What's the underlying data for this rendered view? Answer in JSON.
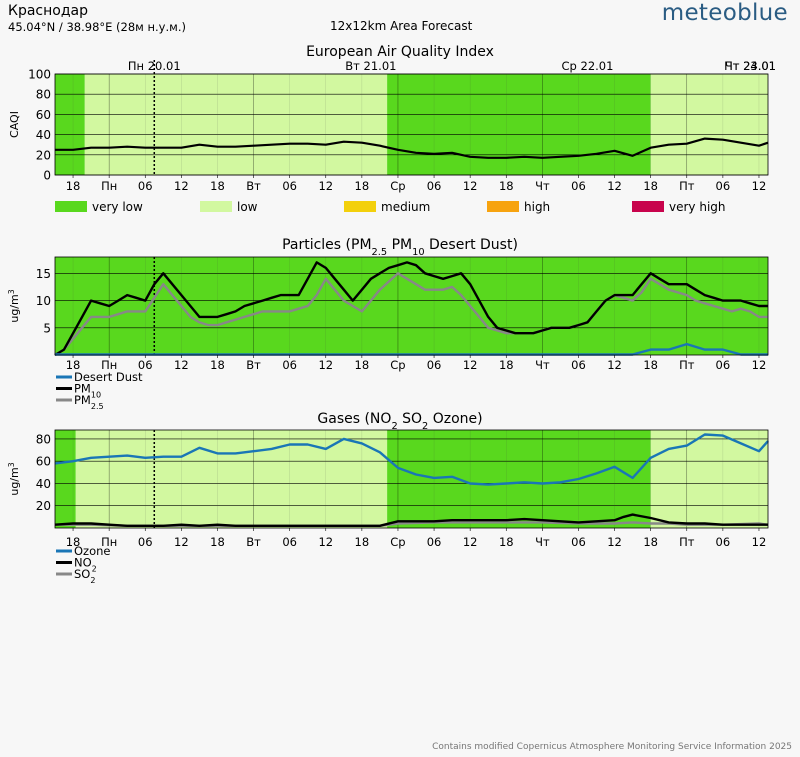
{
  "header": {
    "location": "Краснодар",
    "coords": "45.04°N / 38.98°E (28м н.у.м.)",
    "model": "12x12km Area Forecast",
    "brand": "meteoblue"
  },
  "footer": {
    "attribution": "Contains modified Copernicus Atmosphere Monitoring Service Information 2025"
  },
  "timeline": {
    "x_range": [
      0,
      79
    ],
    "day_labels": [
      {
        "x": 11,
        "label": "Пн 20.01"
      },
      {
        "x": 35,
        "label": "Вт 21.01"
      },
      {
        "x": 59,
        "label": "Ср 22.01"
      },
      {
        "x": 83,
        "label": "Чт 23.01"
      },
      {
        "x": 107,
        "label": "Пт 24.01"
      }
    ],
    "tick_labels": [
      {
        "x": 2,
        "label": "18"
      },
      {
        "x": 6,
        "label": "Пн"
      },
      {
        "x": 10,
        "label": "06"
      },
      {
        "x": 14,
        "label": "12"
      },
      {
        "x": 18,
        "label": "18"
      },
      {
        "x": 22,
        "label": "Вт"
      },
      {
        "x": 26,
        "label": "06"
      },
      {
        "x": 30,
        "label": "12"
      },
      {
        "x": 34,
        "label": "18"
      },
      {
        "x": 38,
        "label": "Ср"
      },
      {
        "x": 42,
        "label": "06"
      },
      {
        "x": 46,
        "label": "12"
      },
      {
        "x": 50,
        "label": "18"
      },
      {
        "x": 54,
        "label": "Чт"
      },
      {
        "x": 58,
        "label": "06"
      },
      {
        "x": 62,
        "label": "12"
      },
      {
        "x": 66,
        "label": "18"
      },
      {
        "x": 70,
        "label": "Пт"
      },
      {
        "x": 74,
        "label": "06"
      },
      {
        "x": 78,
        "label": "12"
      }
    ],
    "day_lines": [
      6,
      22,
      38,
      54,
      70
    ],
    "now_marker": 11,
    "band_colors": {
      "very_low": "#59d81e",
      "low": "#d2f8a0"
    }
  },
  "chart_data": [
    {
      "type": "line",
      "title": "European Air Quality Index",
      "ylabel": "CAQI",
      "ylim": [
        0,
        100
      ],
      "yticks": [
        0,
        20,
        40,
        60,
        80,
        100
      ],
      "bands": [
        {
          "from": 0,
          "to": 3.3,
          "level": "very_low"
        },
        {
          "from": 3.3,
          "to": 36.8,
          "level": "low"
        },
        {
          "from": 36.8,
          "to": 66,
          "level": "very_low"
        },
        {
          "from": 66,
          "to": 79,
          "level": "low"
        }
      ],
      "legend": [
        {
          "label": "very low",
          "color": "#59d81e"
        },
        {
          "label": "low",
          "color": "#d2f8a0"
        },
        {
          "label": "medium",
          "color": "#f3d00c"
        },
        {
          "label": "high",
          "color": "#f7a30f"
        },
        {
          "label": "very high",
          "color": "#c8034c"
        }
      ],
      "series": [
        {
          "name": "CAQI",
          "color": "#000000",
          "width": 2.2,
          "x": [
            0,
            2,
            4,
            6,
            8,
            10,
            12,
            14,
            16,
            18,
            20,
            22,
            24,
            26,
            28,
            30,
            32,
            34,
            36,
            38,
            40,
            42,
            44,
            46,
            48,
            50,
            52,
            54,
            56,
            58,
            60,
            62,
            64,
            66,
            68,
            70,
            72,
            74,
            76,
            78,
            79
          ],
          "y": [
            25,
            25,
            27,
            27,
            28,
            27,
            27,
            27,
            30,
            28,
            28,
            29,
            30,
            31,
            31,
            30,
            33,
            32,
            29,
            25,
            22,
            21,
            22,
            18,
            17,
            17,
            18,
            17,
            18,
            19,
            21,
            24,
            19,
            27,
            30,
            31,
            36,
            35,
            32,
            29,
            32
          ]
        }
      ]
    },
    {
      "type": "line",
      "title": "Particles (PM2.5 PM10 Desert Dust)",
      "ylabel": "ug/m3",
      "ylim": [
        0,
        18
      ],
      "yticks": [
        5,
        10,
        15
      ],
      "bands": [
        {
          "from": 0,
          "to": 79,
          "level": "very_low"
        }
      ],
      "legend": [
        {
          "label": "Desert Dust",
          "color": "#1a76b6"
        },
        {
          "label": "PM10",
          "color": "#000000"
        },
        {
          "label": "PM2.5",
          "color": "#888888"
        }
      ],
      "series": [
        {
          "name": "PM2.5",
          "color": "#888888",
          "width": 2.4,
          "x": [
            0,
            1,
            2,
            3,
            4,
            5,
            6,
            7,
            8,
            9,
            10,
            11,
            12,
            13,
            14,
            15,
            16,
            17,
            18,
            19,
            20,
            21,
            22,
            23,
            24,
            25,
            26,
            27,
            28,
            29,
            30,
            31,
            32,
            33,
            34,
            35,
            36,
            37,
            38,
            39,
            40,
            41,
            42,
            43,
            44,
            45,
            46,
            47,
            48,
            49,
            50,
            51,
            52,
            53,
            54,
            55,
            56,
            57,
            58,
            59,
            60,
            61,
            62,
            63,
            64,
            65,
            66,
            67,
            68,
            69,
            70,
            71,
            72,
            73,
            74,
            75,
            76,
            77,
            78,
            79
          ],
          "y": [
            0,
            1,
            3,
            5,
            7,
            7,
            7,
            7.5,
            8,
            8,
            8,
            10.5,
            13,
            11,
            9,
            7,
            6,
            5.5,
            5.5,
            6,
            6.5,
            7,
            7.5,
            8,
            8,
            8,
            8,
            8.5,
            9,
            11,
            14,
            12,
            10,
            9,
            8,
            10,
            12,
            13.5,
            15,
            14,
            13,
            12,
            12,
            12,
            12.5,
            11,
            9,
            7,
            5,
            4.5,
            4,
            4,
            4,
            4,
            4.5,
            5,
            5,
            5,
            5.5,
            6,
            8,
            10,
            11,
            10.5,
            10,
            11.5,
            14,
            13,
            12,
            11.5,
            11,
            10,
            9.5,
            9,
            8.5,
            8,
            8.5,
            8,
            7,
            7
          ]
        },
        {
          "name": "PM10",
          "color": "#000000",
          "width": 2.4,
          "x": [
            0,
            1,
            2,
            3,
            4,
            5,
            6,
            7,
            8,
            9,
            10,
            11,
            12,
            13,
            14,
            15,
            16,
            17,
            18,
            19,
            20,
            21,
            22,
            23,
            24,
            25,
            26,
            27,
            28,
            29,
            30,
            31,
            32,
            33,
            34,
            35,
            36,
            37,
            38,
            39,
            40,
            41,
            42,
            43,
            44,
            45,
            46,
            47,
            48,
            49,
            50,
            51,
            52,
            53,
            54,
            55,
            56,
            57,
            58,
            59,
            60,
            61,
            62,
            63,
            64,
            65,
            66,
            67,
            68,
            69,
            70,
            71,
            72,
            73,
            74,
            75,
            76,
            77,
            78,
            79
          ],
          "y": [
            0,
            1,
            4,
            7,
            10,
            9.5,
            9,
            10,
            11,
            10.5,
            10,
            13,
            15,
            13,
            11,
            9,
            7,
            7,
            7,
            7.5,
            8,
            9,
            9.5,
            10,
            10.5,
            11,
            11,
            11,
            14,
            17,
            16,
            14,
            12,
            10,
            12,
            14,
            15,
            16,
            16.5,
            17,
            16.5,
            15,
            14.5,
            14,
            14.5,
            15,
            13,
            10,
            7,
            5,
            4.5,
            4,
            4,
            4,
            4.5,
            5,
            5,
            5,
            5.5,
            6,
            8,
            10,
            11,
            11,
            11,
            13,
            15,
            14,
            13,
            13,
            13,
            12,
            11,
            10.5,
            10,
            10,
            10,
            9.5,
            9,
            9
          ]
        },
        {
          "name": "Desert Dust",
          "color": "#1a76b6",
          "width": 2.4,
          "x": [
            0,
            64,
            66,
            68,
            70,
            72,
            74,
            76,
            79
          ],
          "y": [
            0.1,
            0.1,
            1,
            1,
            2,
            1,
            1,
            0.1,
            0.1
          ]
        }
      ]
    },
    {
      "type": "line",
      "title": "Gases (NO2 SO2 Ozone)",
      "ylabel": "ug/m3",
      "ylim": [
        0,
        88
      ],
      "yticks": [
        20,
        40,
        60,
        80
      ],
      "bands": [
        {
          "from": 0,
          "to": 2.3,
          "level": "very_low"
        },
        {
          "from": 2.3,
          "to": 36.8,
          "level": "low"
        },
        {
          "from": 36.8,
          "to": 66,
          "level": "very_low"
        },
        {
          "from": 66,
          "to": 79,
          "level": "low"
        }
      ],
      "legend": [
        {
          "label": "Ozone",
          "color": "#1a76b6"
        },
        {
          "label": "NO2",
          "color": "#000000"
        },
        {
          "label": "SO2",
          "color": "#888888"
        }
      ],
      "series": [
        {
          "name": "SO2",
          "color": "#888888",
          "width": 2.4,
          "x": [
            0,
            4,
            8,
            12,
            16,
            20,
            24,
            28,
            32,
            36,
            38,
            42,
            46,
            50,
            54,
            58,
            62,
            64,
            66,
            68,
            70,
            74,
            78,
            79
          ],
          "y": [
            3,
            3,
            2,
            2,
            2,
            2,
            2,
            2,
            2,
            2,
            4,
            5,
            5,
            5,
            5,
            4,
            4,
            5,
            4,
            4,
            3,
            3,
            4,
            3
          ]
        },
        {
          "name": "NO2",
          "color": "#000000",
          "width": 2.4,
          "x": [
            0,
            2,
            4,
            6,
            8,
            10,
            12,
            14,
            16,
            18,
            20,
            22,
            24,
            26,
            28,
            30,
            32,
            34,
            36,
            38,
            40,
            42,
            44,
            46,
            48,
            50,
            52,
            54,
            56,
            58,
            60,
            62,
            63,
            64,
            66,
            68,
            70,
            72,
            74,
            76,
            78,
            79
          ],
          "y": [
            3,
            4,
            4,
            3,
            2,
            2,
            2,
            3,
            2,
            3,
            2,
            2,
            2,
            2,
            2,
            2,
            2,
            2,
            2,
            6,
            6,
            6,
            7,
            7,
            7,
            7,
            8,
            7,
            6,
            5,
            6,
            7,
            10,
            12,
            9,
            5,
            4,
            4,
            3,
            3,
            3,
            3
          ]
        },
        {
          "name": "Ozone",
          "color": "#1a76b6",
          "width": 2.4,
          "x": [
            0,
            2,
            4,
            6,
            8,
            10,
            12,
            14,
            16,
            18,
            20,
            22,
            24,
            26,
            28,
            30,
            32,
            34,
            36,
            38,
            40,
            42,
            44,
            46,
            48,
            50,
            52,
            54,
            56,
            58,
            60,
            62,
            64,
            66,
            68,
            70,
            72,
            74,
            76,
            78,
            79
          ],
          "y": [
            58,
            60,
            63,
            64,
            65,
            63,
            64,
            64,
            72,
            67,
            67,
            69,
            71,
            75,
            75,
            71,
            80,
            76,
            68,
            54,
            48,
            45,
            46,
            40,
            39,
            40,
            41,
            40,
            41,
            44,
            49,
            55,
            45,
            63,
            71,
            74,
            84,
            83,
            76,
            69,
            78
          ]
        }
      ]
    }
  ]
}
